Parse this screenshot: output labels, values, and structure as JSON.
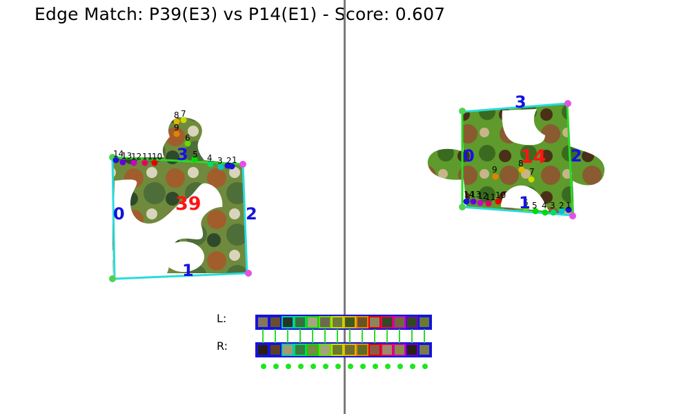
{
  "title": "Edge Match: P39(E3) vs P14(E1) - Score: 0.607",
  "left_piece": {
    "id_label": "39",
    "edge_labels": [
      {
        "text": "0",
        "color": "#1414dc"
      },
      {
        "text": "1",
        "color": "#1414dc"
      },
      {
        "text": "2",
        "color": "#1414dc"
      },
      {
        "text": "3",
        "color": "#1414dc"
      }
    ],
    "point_labels": [
      "1",
      "2",
      "3",
      "4",
      "5",
      "6",
      "7",
      "8",
      "9",
      "10",
      "11",
      "12",
      "13",
      "14"
    ]
  },
  "right_piece": {
    "id_label": "14",
    "edge_labels": [
      {
        "text": "0",
        "color": "#1414dc"
      },
      {
        "text": "1",
        "color": "#1414dc"
      },
      {
        "text": "2",
        "color": "#1414dc"
      },
      {
        "text": "3",
        "color": "#1414dc"
      }
    ],
    "point_labels": [
      "1",
      "2",
      "3",
      "4",
      "5",
      "6",
      "7",
      "8",
      "9",
      "10",
      "11",
      "12",
      "13",
      "14"
    ]
  },
  "strip": {
    "left_label": "L:",
    "right_label": "R:",
    "left_colors": [
      "#86765a",
      "#6a4e32",
      "#263524",
      "#3a6c42",
      "#a8a482",
      "#6e6852",
      "#707a3e",
      "#3e5a22",
      "#6a5226",
      "#8a8660",
      "#304a22",
      "#6c6c3a",
      "#304a1e",
      "#6a7a30"
    ],
    "right_colors": [
      "#2a1e14",
      "#5e3e24",
      "#a69a6c",
      "#3c7a40",
      "#7a8a40",
      "#a4a47a",
      "#6c7a30",
      "#6e6c34",
      "#5c6a2a",
      "#8a5a4a",
      "#9c8a6a",
      "#8a8a40",
      "#2a2014",
      "#7a7a4a"
    ],
    "cell_borders": [
      "#1414dc",
      "#1414dc",
      "#00c8c8",
      "#00dc64",
      "#00dc00",
      "#64dc00",
      "#c8dc00",
      "#e6b400",
      "#e68200",
      "#e60000",
      "#e60064",
      "#c800c8",
      "#6400dc",
      "#1414dc"
    ]
  },
  "colors": {
    "corner": "#50d250",
    "corner_alt": "#e650e6",
    "outline_cyan": "#28dcdc",
    "outline_green": "#28dc28",
    "piece_label": "#ff1414"
  }
}
